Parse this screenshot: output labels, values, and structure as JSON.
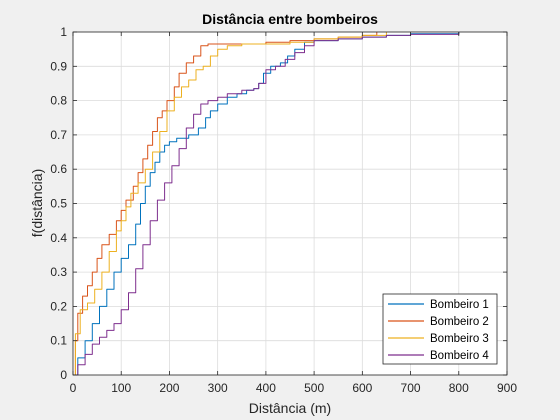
{
  "chart_data": {
    "type": "line",
    "title": "Distância entre bombeiros",
    "xlabel": "Distância (m)",
    "ylabel": "f(distância)",
    "xlim": [
      0,
      900
    ],
    "ylim": [
      0,
      1
    ],
    "xticks": [
      "0",
      "100",
      "200",
      "300",
      "400",
      "500",
      "600",
      "700",
      "800",
      "900"
    ],
    "yticks": [
      "0",
      "0.1",
      "0.2",
      "0.3",
      "0.4",
      "0.5",
      "0.6",
      "0.7",
      "0.8",
      "0.9",
      "1"
    ],
    "grid": true,
    "legend_position": "bottom-right",
    "series": [
      {
        "name": "Bombeiro 1",
        "color": "#0072bd",
        "points": [
          [
            0,
            0
          ],
          [
            10,
            0.05
          ],
          [
            25,
            0.1
          ],
          [
            40,
            0.15
          ],
          [
            55,
            0.2
          ],
          [
            70,
            0.25
          ],
          [
            85,
            0.3
          ],
          [
            100,
            0.34
          ],
          [
            115,
            0.38
          ],
          [
            130,
            0.44
          ],
          [
            140,
            0.5
          ],
          [
            150,
            0.55
          ],
          [
            160,
            0.59
          ],
          [
            170,
            0.62
          ],
          [
            180,
            0.65
          ],
          [
            190,
            0.67
          ],
          [
            200,
            0.68
          ],
          [
            215,
            0.69
          ],
          [
            240,
            0.7
          ],
          [
            260,
            0.72
          ],
          [
            275,
            0.75
          ],
          [
            285,
            0.77
          ],
          [
            300,
            0.79
          ],
          [
            320,
            0.81
          ],
          [
            340,
            0.82
          ],
          [
            360,
            0.83
          ],
          [
            375,
            0.835
          ],
          [
            385,
            0.85
          ],
          [
            395,
            0.88
          ],
          [
            410,
            0.9
          ],
          [
            430,
            0.91
          ],
          [
            445,
            0.93
          ],
          [
            460,
            0.95
          ],
          [
            480,
            0.97
          ],
          [
            500,
            0.975
          ],
          [
            550,
            0.98
          ],
          [
            600,
            0.985
          ],
          [
            650,
            0.99
          ],
          [
            700,
            0.995
          ],
          [
            800,
            1
          ]
        ]
      },
      {
        "name": "Bombeiro 2",
        "color": "#d95319",
        "points": [
          [
            0,
            0
          ],
          [
            5,
            0.1
          ],
          [
            10,
            0.18
          ],
          [
            20,
            0.23
          ],
          [
            30,
            0.26
          ],
          [
            40,
            0.3
          ],
          [
            50,
            0.34
          ],
          [
            60,
            0.38
          ],
          [
            75,
            0.41
          ],
          [
            90,
            0.45
          ],
          [
            100,
            0.48
          ],
          [
            110,
            0.51
          ],
          [
            125,
            0.55
          ],
          [
            135,
            0.59
          ],
          [
            145,
            0.63
          ],
          [
            155,
            0.67
          ],
          [
            165,
            0.71
          ],
          [
            175,
            0.75
          ],
          [
            185,
            0.77
          ],
          [
            195,
            0.8
          ],
          [
            210,
            0.84
          ],
          [
            220,
            0.88
          ],
          [
            235,
            0.91
          ],
          [
            250,
            0.93
          ],
          [
            265,
            0.96
          ],
          [
            280,
            0.965
          ],
          [
            320,
            0.965
          ],
          [
            400,
            0.97
          ],
          [
            450,
            0.975
          ],
          [
            500,
            0.98
          ],
          [
            550,
            0.985
          ],
          [
            600,
            0.99
          ],
          [
            630,
            1
          ]
        ]
      },
      {
        "name": "Bombeiro 3",
        "color": "#edb120",
        "points": [
          [
            0,
            0
          ],
          [
            5,
            0.12
          ],
          [
            15,
            0.19
          ],
          [
            30,
            0.21
          ],
          [
            45,
            0.25
          ],
          [
            60,
            0.3
          ],
          [
            75,
            0.36
          ],
          [
            90,
            0.42
          ],
          [
            100,
            0.45
          ],
          [
            110,
            0.49
          ],
          [
            120,
            0.53
          ],
          [
            135,
            0.56
          ],
          [
            150,
            0.6
          ],
          [
            165,
            0.65
          ],
          [
            180,
            0.71
          ],
          [
            195,
            0.77
          ],
          [
            210,
            0.81
          ],
          [
            225,
            0.84
          ],
          [
            240,
            0.86
          ],
          [
            255,
            0.89
          ],
          [
            270,
            0.9
          ],
          [
            285,
            0.93
          ],
          [
            300,
            0.95
          ],
          [
            320,
            0.96
          ],
          [
            350,
            0.965
          ],
          [
            400,
            0.965
          ],
          [
            450,
            0.97
          ],
          [
            500,
            0.98
          ],
          [
            550,
            0.985
          ],
          [
            600,
            0.99
          ],
          [
            650,
            1
          ]
        ]
      },
      {
        "name": "Bombeiro 4",
        "color": "#7e2f8e",
        "points": [
          [
            0,
            0
          ],
          [
            10,
            0.03
          ],
          [
            25,
            0.06
          ],
          [
            40,
            0.09
          ],
          [
            55,
            0.11
          ],
          [
            70,
            0.13
          ],
          [
            85,
            0.15
          ],
          [
            100,
            0.19
          ],
          [
            115,
            0.24
          ],
          [
            130,
            0.31
          ],
          [
            145,
            0.38
          ],
          [
            160,
            0.45
          ],
          [
            175,
            0.51
          ],
          [
            190,
            0.56
          ],
          [
            205,
            0.61
          ],
          [
            220,
            0.66
          ],
          [
            235,
            0.72
          ],
          [
            250,
            0.76
          ],
          [
            265,
            0.79
          ],
          [
            280,
            0.8
          ],
          [
            300,
            0.81
          ],
          [
            320,
            0.82
          ],
          [
            350,
            0.83
          ],
          [
            375,
            0.835
          ],
          [
            385,
            0.85
          ],
          [
            400,
            0.89
          ],
          [
            420,
            0.9
          ],
          [
            440,
            0.92
          ],
          [
            460,
            0.94
          ],
          [
            480,
            0.96
          ],
          [
            500,
            0.975
          ],
          [
            550,
            0.98
          ],
          [
            600,
            0.985
          ],
          [
            650,
            0.99
          ],
          [
            700,
            0.993
          ],
          [
            800,
            0.997
          ]
        ]
      }
    ]
  }
}
